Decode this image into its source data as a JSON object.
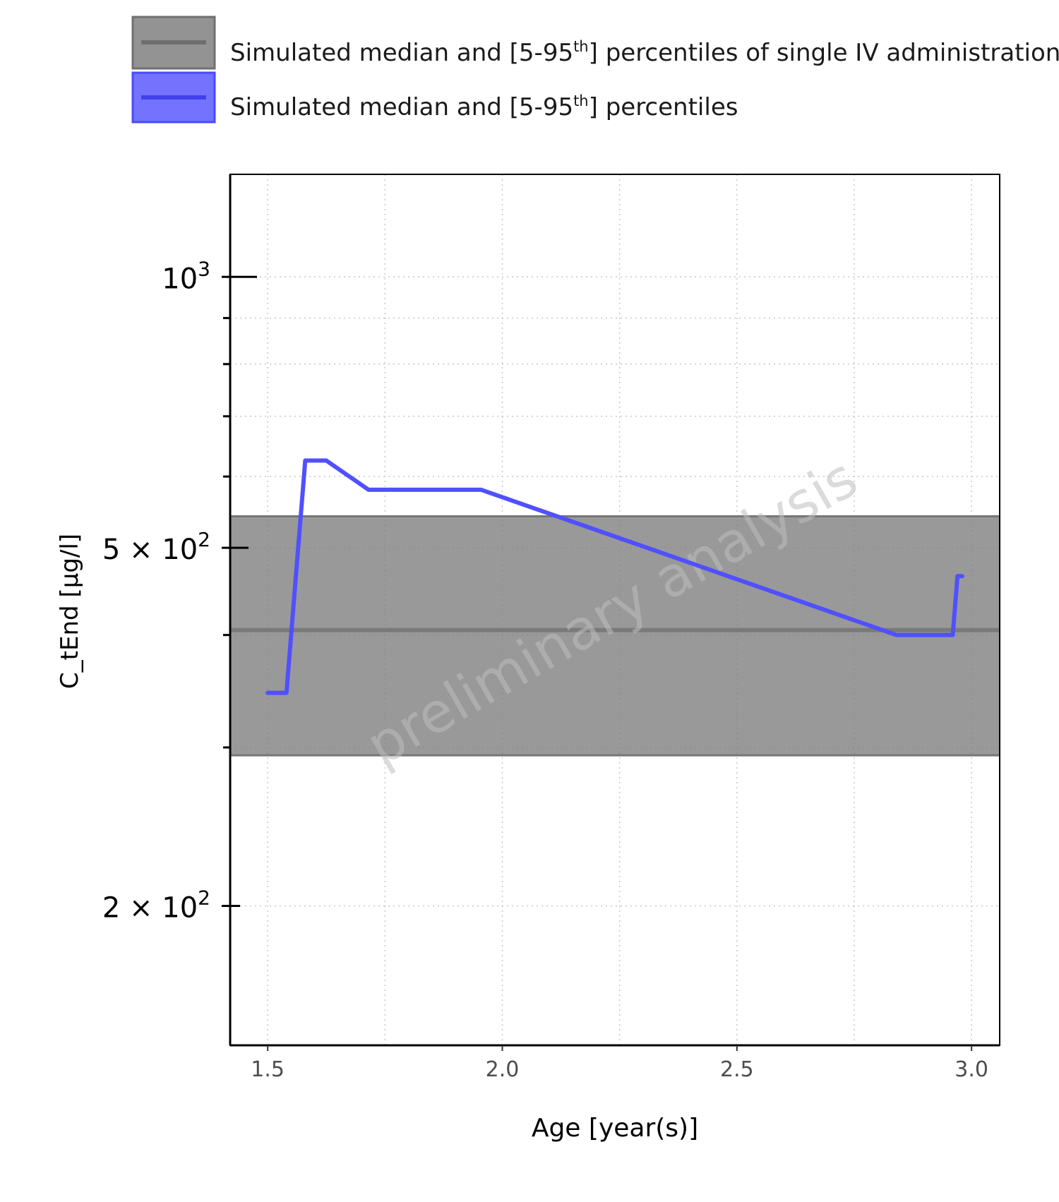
{
  "chart_data": {
    "type": "line",
    "title": "",
    "xlabel": "Age [year(s)]",
    "ylabel": "C_tEnd [µg/l]",
    "xlim": [
      1.42,
      3.06
    ],
    "ylim": [
      140,
      1300
    ],
    "y_scale": "log",
    "grid": true,
    "legend_position": "top",
    "watermark": "preliminary analysis",
    "x_ticks": [
      {
        "value": 1.5,
        "label": "1.5"
      },
      {
        "value": 2.0,
        "label": "2.0"
      },
      {
        "value": 2.5,
        "label": "2.5"
      },
      {
        "value": 3.0,
        "label": "3.0"
      }
    ],
    "y_ticks": [
      {
        "value": 1000,
        "mantissa": "",
        "exponent": "3"
      },
      {
        "value": 500,
        "mantissa": "5",
        "exponent": "2"
      },
      {
        "value": 200,
        "mantissa": "2",
        "exponent": "2"
      }
    ],
    "y_minor_ticks": [
      300,
      400,
      600,
      700,
      800,
      900
    ],
    "legend": [
      {
        "prefix": "Simulated median and [5-95",
        "sup": "th",
        "suffix": "] percentiles of single IV administration",
        "color": "#808080"
      },
      {
        "prefix": "Simulated median and [5-95",
        "sup": "th",
        "suffix": "] percentiles",
        "color": "#5050ff"
      }
    ],
    "series": [
      {
        "name": "Simulated median and [5-95th] percentiles of single IV administration",
        "color": "#808080",
        "kind": "band",
        "x": [
          1.42,
          3.06
        ],
        "median": [
          405,
          405
        ],
        "lower": [
          294,
          294
        ],
        "upper": [
          542,
          542
        ]
      },
      {
        "name": "Simulated median and [5-95th] percentiles",
        "color": "#5050ff",
        "kind": "line",
        "x": [
          1.5,
          1.54,
          1.58,
          1.625,
          1.715,
          1.955,
          2.84,
          2.96,
          2.97,
          2.98
        ],
        "median": [
          345,
          345,
          625,
          625,
          580,
          580,
          400,
          400,
          465,
          465
        ]
      }
    ]
  }
}
